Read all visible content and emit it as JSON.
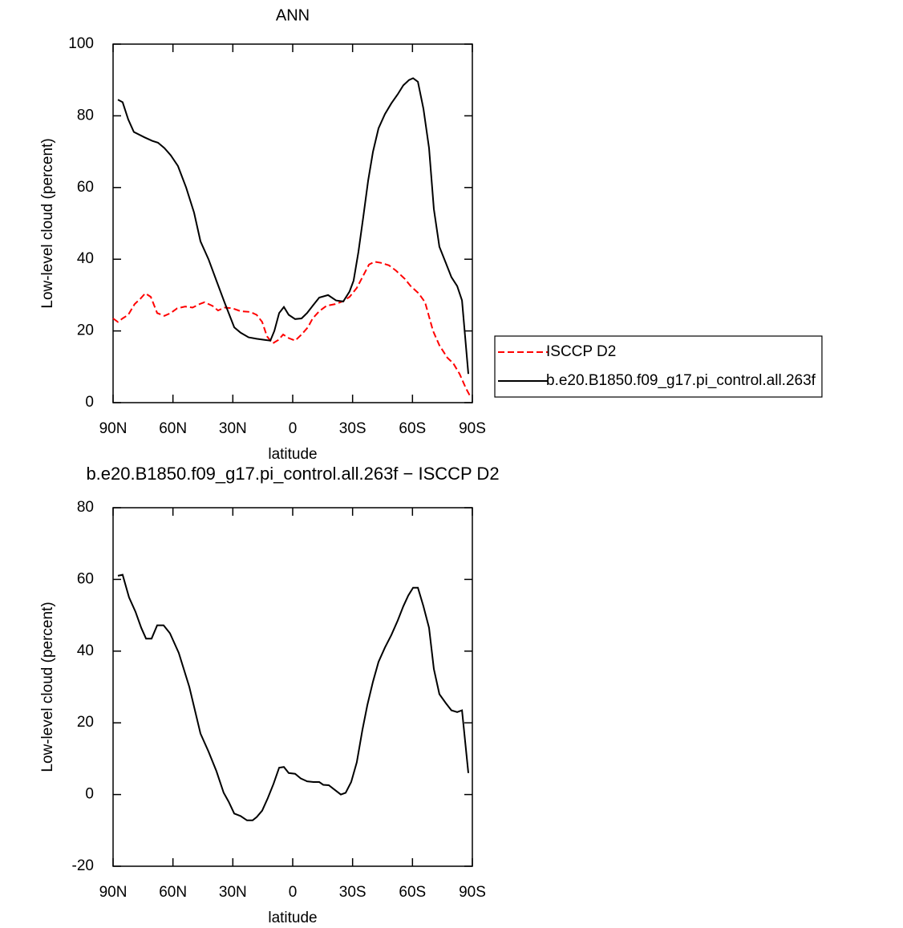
{
  "chart_data": [
    {
      "type": "line",
      "title": "ANN",
      "xlabel": "latitude",
      "ylabel": "Low-level cloud (percent)",
      "xlim": [
        90,
        -90
      ],
      "xticks": [
        {
          "value": 90,
          "label": "90N"
        },
        {
          "value": 60,
          "label": "60N"
        },
        {
          "value": 30,
          "label": "30N"
        },
        0,
        {
          "value": -30,
          "label": "30S"
        },
        {
          "value": -60,
          "label": "60S"
        },
        {
          "value": -90,
          "label": "90S"
        }
      ],
      "ylim": [
        0,
        100
      ],
      "yticks": [
        0,
        20,
        40,
        60,
        80,
        100
      ],
      "legend": "right",
      "series": [
        {
          "name": "ISCCP D2",
          "color": "#ff0000",
          "dash": true,
          "x": [
            90,
            87.6,
            85.2,
            82.4,
            79.2,
            76.3,
            73.9,
            71.1,
            67.9,
            64.3,
            61.1,
            57.9,
            53.8,
            50.2,
            46.6,
            44.2,
            40.2,
            37.4,
            34.2,
            30.1,
            26.1,
            21.3,
            18.1,
            15.3,
            12.9,
            10.1,
            7.2,
            4.8,
            2.0,
            -1.2,
            -4.4,
            -7.6,
            -10.0,
            -13.3,
            -16.9,
            -21.3,
            -25.3,
            -28.5,
            -32.1,
            -34.9,
            -38.2,
            -41.0,
            -44.2,
            -48.2,
            -51.8,
            -56.2,
            -59.1,
            -63.1,
            -66.3,
            -70.3,
            -73.5,
            -77.5,
            -80.4,
            -83.6,
            -86.8,
            -89.2
          ],
          "values": [
            23.5,
            22.5,
            23.5,
            24.5,
            27.5,
            29,
            30.5,
            29.5,
            25,
            24.2,
            25,
            26.3,
            26.8,
            26.5,
            27.5,
            28,
            27,
            25.7,
            26.5,
            26.3,
            25.5,
            25.3,
            24.5,
            22.5,
            18.5,
            16.5,
            17.5,
            19,
            18,
            17.3,
            19,
            21,
            23.5,
            25.5,
            27,
            27.5,
            28.3,
            29.5,
            32,
            35,
            38.5,
            39.3,
            39,
            38.3,
            36.8,
            34.5,
            32.5,
            30.5,
            28,
            20,
            16,
            12.5,
            11,
            8,
            4,
            1.5
          ]
        },
        {
          "name": "b.e20.B1850.f09_g17.pi_control.all.263f",
          "color": "#000000",
          "dash": false,
          "x": [
            87.6,
            85.2,
            82.4,
            79.6,
            74.3,
            70.3,
            67.5,
            64.3,
            61.1,
            57.5,
            53.4,
            49.4,
            46.2,
            42.2,
            38.2,
            34.2,
            29.3,
            26.1,
            22.1,
            18.1,
            14.1,
            11.2,
            9.2,
            6.8,
            4.4,
            2.0,
            -1.2,
            -4.4,
            -7.2,
            -10.0,
            -13.3,
            -17.7,
            -21.7,
            -25.3,
            -28.5,
            -30.5,
            -32.9,
            -35.4,
            -37.8,
            -40.2,
            -43.0,
            -46.2,
            -49.4,
            -52.6,
            -55.4,
            -58.3,
            -60.3,
            -62.7,
            -65.5,
            -68.3,
            -70.7,
            -73.5,
            -76.7,
            -79.5,
            -82.4,
            -84.8,
            -88.0
          ],
          "values": [
            84.5,
            83.8,
            79,
            75.5,
            74,
            73,
            72.5,
            71,
            69,
            66,
            60,
            53,
            45,
            40,
            34,
            28,
            21,
            19.5,
            18.2,
            17.8,
            17.5,
            17.3,
            20,
            25,
            26.7,
            24.5,
            23.3,
            23.5,
            25,
            27,
            29.3,
            30,
            28.5,
            28.2,
            31,
            34,
            42,
            52,
            62,
            70,
            76.5,
            80.5,
            83.5,
            86,
            88.5,
            90,
            90.5,
            89.5,
            82,
            71,
            54,
            43.5,
            39,
            35,
            32.5,
            28.5,
            8
          ]
        }
      ]
    },
    {
      "type": "line",
      "title": "b.e20.B1850.f09_g17.pi_control.all.263f  −  ISCCP D2",
      "xlabel": "latitude",
      "ylabel": "Low-level cloud (percent)",
      "xlim": [
        90,
        -90
      ],
      "xticks": [
        {
          "value": 90,
          "label": "90N"
        },
        {
          "value": 60,
          "label": "60N"
        },
        {
          "value": 30,
          "label": "30N"
        },
        0,
        {
          "value": -30,
          "label": "30S"
        },
        {
          "value": -60,
          "label": "60S"
        },
        {
          "value": -90,
          "label": "90S"
        }
      ],
      "ylim": [
        -20,
        80
      ],
      "yticks": [
        -20,
        0,
        20,
        40,
        60,
        80
      ],
      "color": "#000000",
      "x": [
        87.6,
        85.2,
        82.0,
        78.8,
        75.9,
        73.5,
        70.7,
        67.9,
        64.7,
        61.5,
        57.1,
        51.8,
        46.2,
        42.2,
        38.2,
        34.6,
        32.1,
        29.3,
        26.1,
        22.9,
        20.1,
        18.1,
        15.3,
        12.5,
        9.6,
        6.8,
        4.4,
        2.0,
        -1.2,
        -4.0,
        -7.2,
        -10.4,
        -13.3,
        -15.3,
        -18.1,
        -21.3,
        -24.1,
        -26.5,
        -29.3,
        -32.1,
        -34.9,
        -37.4,
        -40.2,
        -43.0,
        -46.2,
        -49.4,
        -52.6,
        -55.4,
        -57.9,
        -60.3,
        -62.7,
        -65.5,
        -68.3,
        -70.7,
        -73.5,
        -76.7,
        -79.5,
        -82.4,
        -84.8,
        -88.0
      ],
      "values": [
        61,
        61.3,
        55,
        51,
        46.5,
        43.5,
        43.5,
        47.2,
        47.2,
        45,
        39.5,
        30,
        17,
        12,
        6.5,
        0.5,
        -2,
        -5.3,
        -6,
        -7.2,
        -7.2,
        -6.3,
        -4.5,
        -1,
        3,
        7.5,
        7.7,
        6,
        5.8,
        4.5,
        3.7,
        3.5,
        3.5,
        2.7,
        2.6,
        1.2,
        0,
        0.5,
        3.5,
        9,
        18,
        25,
        31.5,
        37,
        41,
        44.5,
        48.5,
        52.5,
        55.5,
        57.7,
        57.7,
        52.5,
        46.5,
        35,
        28,
        25.5,
        23.5,
        23,
        23.5,
        6
      ]
    }
  ]
}
